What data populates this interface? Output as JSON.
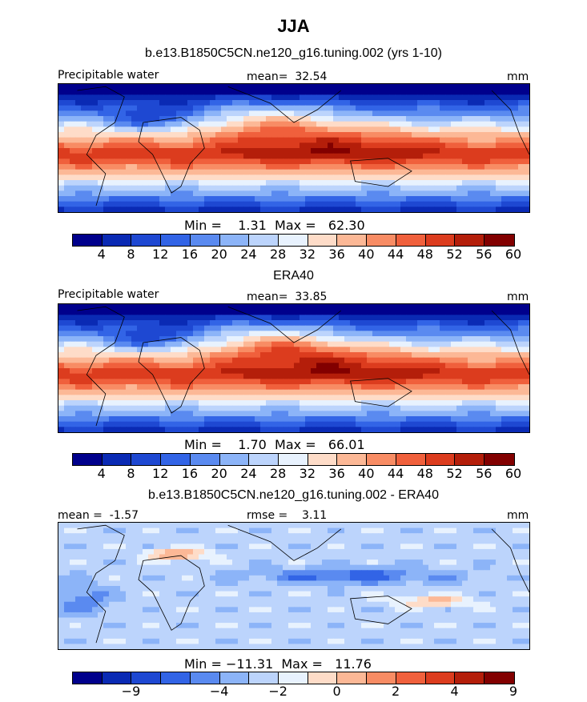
{
  "title": "JJA",
  "panels": [
    {
      "subtitle": "b.e13.B1850C5CN.ne120_g16.tuning.002 (yrs 1-10)",
      "left_label": "Precipitable water",
      "center_label": "mean=  32.54",
      "right_label": "mm",
      "stats": "Min =    1.31  Max =   62.30",
      "colorbar": {
        "colors": [
          "#00008c",
          "#0a2ab4",
          "#1e48d2",
          "#3264e6",
          "#5a8af0",
          "#8cb4f8",
          "#bcd4fc",
          "#e8f2fe",
          "#fedcc8",
          "#fcb896",
          "#f88c64",
          "#f0603c",
          "#dc3c1e",
          "#b41e0a",
          "#820000"
        ],
        "ticks": [
          "4",
          "8",
          "12",
          "16",
          "20",
          "24",
          "28",
          "32",
          "36",
          "40",
          "44",
          "48",
          "52",
          "56",
          "60"
        ]
      },
      "field": "model"
    },
    {
      "subtitle": "ERA40",
      "left_label": "Precipitable water",
      "center_label": "mean=  33.85",
      "right_label": "mm",
      "stats": "Min =    1.70  Max =   66.01",
      "colorbar": {
        "colors": [
          "#00008c",
          "#0a2ab4",
          "#1e48d2",
          "#3264e6",
          "#5a8af0",
          "#8cb4f8",
          "#bcd4fc",
          "#e8f2fe",
          "#fedcc8",
          "#fcb896",
          "#f88c64",
          "#f0603c",
          "#dc3c1e",
          "#b41e0a",
          "#820000"
        ],
        "ticks": [
          "4",
          "8",
          "12",
          "16",
          "20",
          "24",
          "28",
          "32",
          "36",
          "40",
          "44",
          "48",
          "52",
          "56",
          "60"
        ]
      },
      "field": "obs"
    },
    {
      "subtitle": "b.e13.B1850C5CN.ne120_g16.tuning.002 - ERA40",
      "left_label": "mean =  -1.57",
      "center_label": "rmse =    3.11",
      "right_label": "mm",
      "stats": "Min = −11.31  Max =   11.76",
      "colorbar": {
        "colors": [
          "#00008c",
          "#0a2ab4",
          "#1e48d2",
          "#3264e6",
          "#5a8af0",
          "#8cb4f8",
          "#bcd4fc",
          "#e8f2fe",
          "#fedcc8",
          "#fcb896",
          "#f88c64",
          "#f0603c",
          "#dc3c1e",
          "#b41e0a",
          "#820000"
        ],
        "ticks": [
          "−9",
          "−4",
          "−2",
          "0",
          "2",
          "4",
          "9"
        ],
        "tick_slots": [
          2,
          5,
          7,
          9,
          11,
          13,
          15
        ]
      },
      "field": "diff"
    }
  ]
}
